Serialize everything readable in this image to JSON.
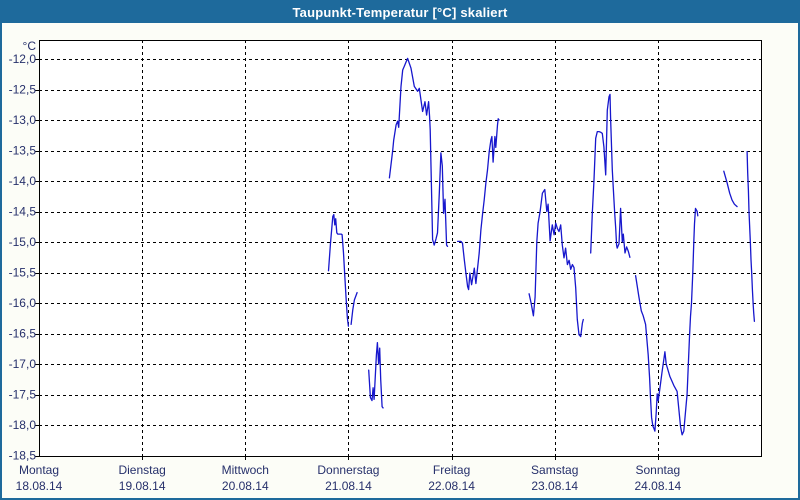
{
  "title_bar": {
    "title": "Taupunkt-Temperatur [°C] skaliert"
  },
  "colors": {
    "frame": "#1e6a9c",
    "page_bg": "#fcfdf7",
    "plot_bg": "#ffffff",
    "grid": "#000000",
    "axis": "#000000",
    "label": "#26306b",
    "line": "#1717cd"
  },
  "chart_data": {
    "type": "line",
    "title": "Taupunkt-Temperatur [°C] skaliert",
    "ylabel": "",
    "xlabel": "",
    "unit_label": "°C",
    "grid": "dashed",
    "legend_position": "none",
    "y_axis": {
      "min": -18.5,
      "max": -12.0,
      "step": 0.5,
      "tick_labels": [
        "-12,0",
        "-12,5",
        "-13,0",
        "-13,5",
        "-14,0",
        "-14,5",
        "-15,0",
        "-15,5",
        "-16,0",
        "-16,5",
        "-17,0",
        "-17,5",
        "-18,0",
        "-18,5"
      ]
    },
    "x_axis": {
      "range_days": [
        0,
        7
      ],
      "days": [
        {
          "name": "Montag",
          "date": "18.08.14"
        },
        {
          "name": "Dienstag",
          "date": "19.08.14"
        },
        {
          "name": "Mittwoch",
          "date": "20.08.14"
        },
        {
          "name": "Donnerstag",
          "date": "21.08.14"
        },
        {
          "name": "Freitag",
          "date": "22.08.14"
        },
        {
          "name": "Samstag",
          "date": "23.08.14"
        },
        {
          "name": "Sonntag",
          "date": "24.08.14"
        }
      ]
    },
    "series": [
      {
        "name": "Taupunkt-Temperatur",
        "color": "#1717cd",
        "note": "points are [days_since_monday_00h, temperature_degC]; gaps between segments = missing data",
        "segments": [
          [
            [
              2.807,
              -15.47
            ],
            [
              2.826,
              -15.02
            ],
            [
              2.848,
              -14.58
            ],
            [
              2.858,
              -14.55
            ],
            [
              2.868,
              -14.72
            ],
            [
              2.877,
              -14.62
            ],
            [
              2.887,
              -14.85
            ],
            [
              2.897,
              -14.87
            ],
            [
              2.93,
              -14.87
            ],
            [
              2.939,
              -14.88
            ],
            [
              2.952,
              -15.18
            ],
            [
              2.965,
              -15.56
            ],
            [
              2.978,
              -15.95
            ],
            [
              2.99,
              -16.25
            ],
            [
              3.0,
              -16.38
            ]
          ],
          [
            [
              3.026,
              -16.35
            ],
            [
              3.042,
              -16.11
            ],
            [
              3.058,
              -15.95
            ],
            [
              3.084,
              -15.83
            ]
          ],
          [
            [
              3.197,
              -17.1
            ],
            [
              3.213,
              -17.55
            ],
            [
              3.229,
              -17.6
            ],
            [
              3.239,
              -17.39
            ],
            [
              3.249,
              -17.58
            ],
            [
              3.261,
              -17.2
            ],
            [
              3.271,
              -16.85
            ],
            [
              3.281,
              -16.65
            ],
            [
              3.293,
              -17.0
            ],
            [
              3.303,
              -16.74
            ],
            [
              3.313,
              -17.25
            ],
            [
              3.326,
              -17.7
            ],
            [
              3.336,
              -17.72
            ]
          ],
          [
            [
              3.397,
              -13.95
            ],
            [
              3.429,
              -13.5
            ],
            [
              3.439,
              -13.33
            ],
            [
              3.462,
              -13.08
            ],
            [
              3.477,
              -13.02
            ],
            [
              3.487,
              -13.12
            ],
            [
              3.51,
              -12.45
            ],
            [
              3.526,
              -12.18
            ],
            [
              3.542,
              -12.12
            ],
            [
              3.558,
              -12.05
            ],
            [
              3.574,
              -11.99
            ],
            [
              3.607,
              -12.15
            ],
            [
              3.639,
              -12.45
            ],
            [
              3.671,
              -12.53
            ],
            [
              3.687,
              -12.48
            ],
            [
              3.719,
              -12.86
            ],
            [
              3.742,
              -12.7
            ],
            [
              3.758,
              -12.92
            ],
            [
              3.777,
              -12.7
            ],
            [
              3.787,
              -12.95
            ],
            [
              3.793,
              -13.16
            ],
            [
              3.816,
              -14.96
            ],
            [
              3.832,
              -15.05
            ],
            [
              3.849,
              -14.95
            ],
            [
              3.864,
              -14.85
            ],
            [
              3.881,
              -14.2
            ],
            [
              3.897,
              -13.54
            ],
            [
              3.91,
              -13.75
            ],
            [
              3.923,
              -14.53
            ],
            [
              3.936,
              -14.3
            ],
            [
              3.952,
              -15.05
            ],
            [
              3.961,
              -15.07
            ]
          ],
          [
            [
              4.058,
              -14.99
            ],
            [
              4.091,
              -14.99
            ],
            [
              4.106,
              -15.02
            ],
            [
              4.123,
              -15.29
            ],
            [
              4.139,
              -15.51
            ],
            [
              4.155,
              -15.73
            ],
            [
              4.165,
              -15.78
            ],
            [
              4.178,
              -15.51
            ],
            [
              4.194,
              -15.7
            ],
            [
              4.22,
              -15.43
            ],
            [
              4.236,
              -15.68
            ],
            [
              4.268,
              -15.18
            ],
            [
              4.284,
              -14.8
            ],
            [
              4.3,
              -14.55
            ],
            [
              4.316,
              -14.31
            ],
            [
              4.333,
              -14.03
            ],
            [
              4.348,
              -13.82
            ],
            [
              4.365,
              -13.52
            ],
            [
              4.381,
              -13.33
            ],
            [
              4.391,
              -13.27
            ],
            [
              4.403,
              -13.69
            ],
            [
              4.42,
              -13.27
            ],
            [
              4.429,
              -13.45
            ],
            [
              4.445,
              -13.08
            ],
            [
              4.452,
              -12.98
            ],
            [
              4.461,
              -13.0
            ]
          ],
          [
            [
              4.752,
              -15.85
            ],
            [
              4.771,
              -16.0
            ],
            [
              4.793,
              -16.21
            ],
            [
              4.81,
              -15.9
            ],
            [
              4.826,
              -15.0
            ],
            [
              4.839,
              -14.69
            ],
            [
              4.858,
              -14.5
            ],
            [
              4.881,
              -14.2
            ],
            [
              4.904,
              -14.14
            ],
            [
              4.923,
              -14.5
            ],
            [
              4.936,
              -14.38
            ],
            [
              4.955,
              -14.98
            ],
            [
              4.977,
              -14.72
            ],
            [
              4.994,
              -14.88
            ],
            [
              5.01,
              -14.69
            ],
            [
              5.026,
              -14.78
            ],
            [
              5.042,
              -14.83
            ],
            [
              5.058,
              -14.72
            ],
            [
              5.074,
              -15.05
            ],
            [
              5.09,
              -15.26
            ],
            [
              5.106,
              -15.1
            ],
            [
              5.123,
              -15.37
            ],
            [
              5.139,
              -15.3
            ],
            [
              5.155,
              -15.45
            ],
            [
              5.171,
              -15.37
            ],
            [
              5.187,
              -15.42
            ],
            [
              5.203,
              -15.75
            ],
            [
              5.219,
              -16.27
            ],
            [
              5.235,
              -16.52
            ],
            [
              5.252,
              -16.55
            ],
            [
              5.268,
              -16.33
            ],
            [
              5.277,
              -16.27
            ]
          ],
          [
            [
              5.349,
              -15.18
            ],
            [
              5.364,
              -14.53
            ],
            [
              5.381,
              -13.98
            ],
            [
              5.397,
              -13.3
            ],
            [
              5.413,
              -13.19
            ],
            [
              5.429,
              -13.19
            ],
            [
              5.445,
              -13.2
            ],
            [
              5.461,
              -13.22
            ],
            [
              5.477,
              -13.44
            ],
            [
              5.494,
              -13.9
            ],
            [
              5.51,
              -12.84
            ],
            [
              5.526,
              -12.62
            ],
            [
              5.536,
              -12.58
            ],
            [
              5.542,
              -12.97
            ],
            [
              5.558,
              -13.82
            ],
            [
              5.568,
              -14.12
            ],
            [
              5.581,
              -14.5
            ],
            [
              5.591,
              -14.77
            ],
            [
              5.6,
              -15.05
            ],
            [
              5.606,
              -15.1
            ],
            [
              5.623,
              -15.03
            ],
            [
              5.639,
              -14.45
            ],
            [
              5.655,
              -15.0
            ],
            [
              5.665,
              -14.87
            ],
            [
              5.681,
              -15.18
            ],
            [
              5.697,
              -15.08
            ],
            [
              5.713,
              -15.15
            ],
            [
              5.729,
              -15.25
            ]
          ],
          [
            [
              5.784,
              -15.55
            ],
            [
              5.816,
              -15.9
            ],
            [
              5.839,
              -16.13
            ],
            [
              5.858,
              -16.21
            ],
            [
              5.881,
              -16.35
            ],
            [
              5.906,
              -16.85
            ],
            [
              5.92,
              -17.23
            ],
            [
              5.929,
              -17.55
            ],
            [
              5.939,
              -17.88
            ],
            [
              5.952,
              -18.02
            ],
            [
              5.961,
              -18.05
            ],
            [
              5.971,
              -18.1
            ],
            [
              5.984,
              -17.8
            ],
            [
              5.994,
              -17.49
            ],
            [
              6.003,
              -17.6
            ],
            [
              6.02,
              -17.4
            ],
            [
              6.039,
              -17.15
            ],
            [
              6.058,
              -16.93
            ],
            [
              6.068,
              -16.8
            ],
            [
              6.081,
              -17.0
            ],
            [
              6.116,
              -17.2
            ],
            [
              6.155,
              -17.35
            ],
            [
              6.187,
              -17.45
            ],
            [
              6.22,
              -18.02
            ],
            [
              6.235,
              -18.16
            ],
            [
              6.252,
              -18.1
            ],
            [
              6.284,
              -17.49
            ],
            [
              6.307,
              -16.55
            ],
            [
              6.316,
              -16.22
            ],
            [
              6.326,
              -16.0
            ],
            [
              6.339,
              -15.5
            ],
            [
              6.348,
              -15.0
            ],
            [
              6.355,
              -14.7
            ],
            [
              6.365,
              -14.45
            ],
            [
              6.381,
              -14.5
            ],
            [
              6.387,
              -14.57
            ]
          ],
          [
            [
              6.639,
              -13.84
            ],
            [
              6.671,
              -14.03
            ],
            [
              6.697,
              -14.2
            ],
            [
              6.719,
              -14.31
            ],
            [
              6.742,
              -14.38
            ],
            [
              6.768,
              -14.42
            ]
          ],
          [
            [
              6.865,
              -13.52
            ],
            [
              6.871,
              -13.87
            ],
            [
              6.878,
              -14.15
            ],
            [
              6.884,
              -14.5
            ],
            [
              6.891,
              -14.8
            ],
            [
              6.897,
              -15.02
            ],
            [
              6.903,
              -15.29
            ],
            [
              6.91,
              -15.51
            ],
            [
              6.917,
              -15.78
            ],
            [
              6.923,
              -16.0
            ],
            [
              6.929,
              -16.16
            ],
            [
              6.936,
              -16.3
            ]
          ]
        ]
      }
    ]
  }
}
